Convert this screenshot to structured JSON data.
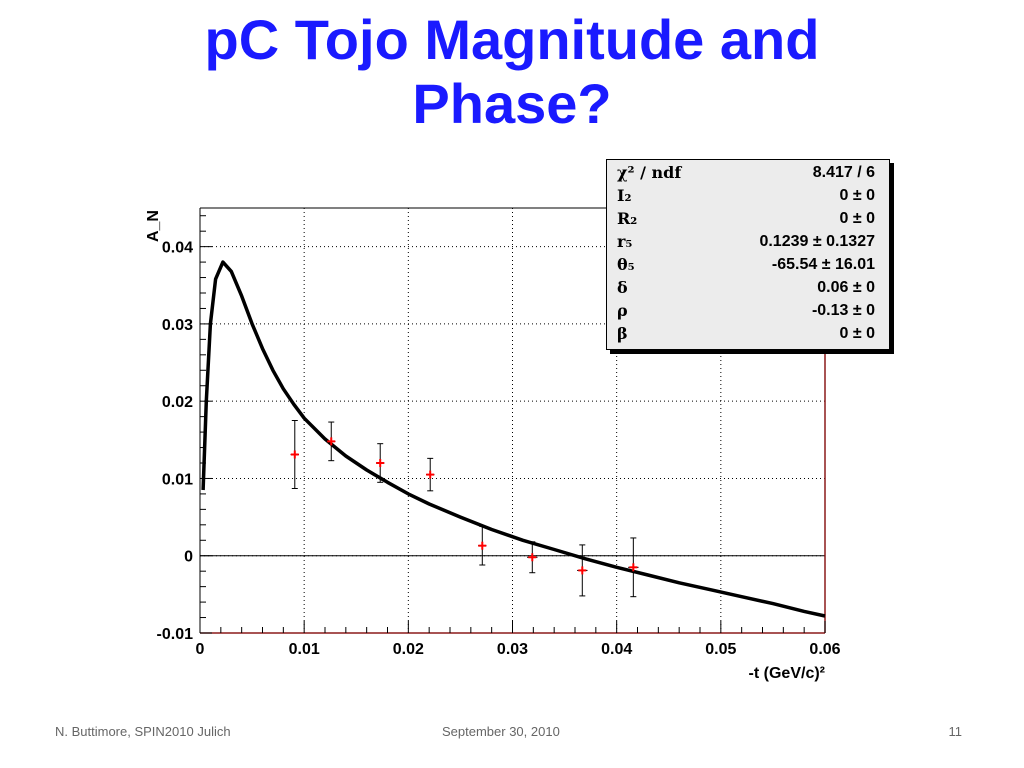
{
  "slide": {
    "title_line1": "pC Tojo Magnitude and",
    "title_line2": "Phase?"
  },
  "footer": {
    "left": "N. Buttimore, SPIN2010 Julich",
    "center": "September 30, 2010",
    "right": "11"
  },
  "stats": [
    {
      "name": "χ² / ndf",
      "value": "8.417 / 6"
    },
    {
      "name": "I₂",
      "value": "0 ±     0"
    },
    {
      "name": "R₂",
      "value": "0 ±     0"
    },
    {
      "name": "r₅",
      "value": "0.1239 ± 0.1327"
    },
    {
      "name": "θ₅",
      "value": "-65.54 ± 16.01"
    },
    {
      "name": "δ",
      "value": "0.06 ±     0"
    },
    {
      "name": "ρ",
      "value": "-0.13 ±     0"
    },
    {
      "name": "β",
      "value": "0 ±     0"
    }
  ],
  "chart_data": {
    "type": "scatter",
    "ylabel": "A_N",
    "xlabel": "-t (GeV/c)²",
    "xlim": [
      0,
      0.06
    ],
    "ylim": [
      -0.01,
      0.045
    ],
    "grid": true,
    "x_ticks": [
      0,
      0.01,
      0.02,
      0.03,
      0.04,
      0.05,
      0.06
    ],
    "x_tick_labels": [
      "0",
      "0.01",
      "0.02",
      "0.03",
      "0.04",
      "0.05",
      "0.06"
    ],
    "y_ticks": [
      -0.01,
      0,
      0.01,
      0.02,
      0.03,
      0.04
    ],
    "y_tick_labels": [
      "-0.01",
      "0",
      "0.01",
      "0.02",
      "0.03",
      "0.04"
    ],
    "data_points": [
      {
        "x": 0.0091,
        "y": 0.0131,
        "yerr": 0.0044,
        "xerr": 0.0004
      },
      {
        "x": 0.0126,
        "y": 0.0148,
        "yerr": 0.0025,
        "xerr": 0.0004
      },
      {
        "x": 0.0173,
        "y": 0.012,
        "yerr": 0.0025,
        "xerr": 0.0004
      },
      {
        "x": 0.0221,
        "y": 0.0105,
        "yerr": 0.0021,
        "xerr": 0.0004
      },
      {
        "x": 0.0271,
        "y": 0.0013,
        "yerr": 0.0025,
        "xerr": 0.0004
      },
      {
        "x": 0.0319,
        "y": -0.0002,
        "yerr": 0.002,
        "xerr": 0.0005
      },
      {
        "x": 0.0367,
        "y": -0.0019,
        "yerr": 0.0033,
        "xerr": 0.0005
      },
      {
        "x": 0.0416,
        "y": -0.0015,
        "yerr": 0.0038,
        "xerr": 0.0005
      }
    ],
    "fit_curve": {
      "x": [
        0.0003,
        0.0006,
        0.001,
        0.0015,
        0.0022,
        0.003,
        0.004,
        0.005,
        0.006,
        0.007,
        0.008,
        0.009,
        0.01,
        0.012,
        0.014,
        0.016,
        0.018,
        0.02,
        0.022,
        0.025,
        0.028,
        0.031,
        0.034,
        0.037,
        0.04,
        0.043,
        0.046,
        0.049,
        0.052,
        0.055,
        0.058,
        0.06
      ],
      "y": [
        0.0085,
        0.02,
        0.03,
        0.0358,
        0.038,
        0.0368,
        0.0336,
        0.03,
        0.0268,
        0.024,
        0.0216,
        0.0196,
        0.0178,
        0.0151,
        0.0129,
        0.0111,
        0.0095,
        0.008,
        0.0067,
        0.005,
        0.0034,
        0.002,
        0.0008,
        -0.0004,
        -0.0015,
        -0.0025,
        -0.0035,
        -0.0044,
        -0.0053,
        -0.0062,
        -0.0072,
        -0.0078
      ]
    },
    "colors": {
      "points": "#ff0000",
      "curve": "#000000",
      "title": "#1a1aff"
    }
  }
}
